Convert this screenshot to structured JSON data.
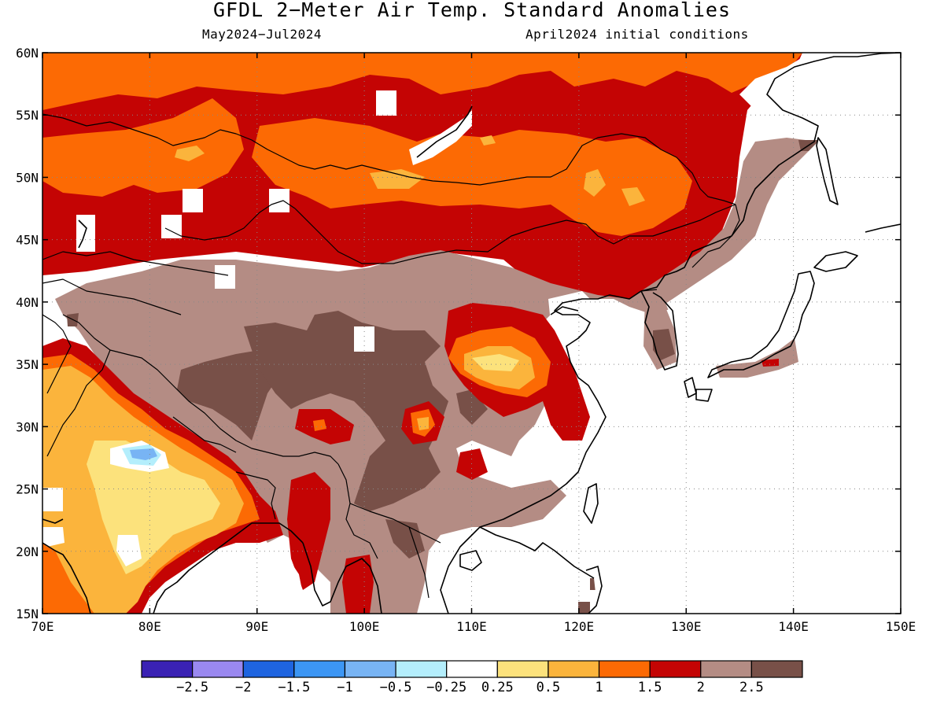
{
  "header": {
    "title": "GFDL 2−Meter Air Temp. Standard Anomalies",
    "period": "May2024−Jul2024",
    "initial_conditions": "April2024 initial conditions"
  },
  "map": {
    "lon_range": [
      70,
      150
    ],
    "lat_range": [
      15,
      60
    ],
    "lon_labels": [
      "70E",
      "80E",
      "90E",
      "100E",
      "110E",
      "120E",
      "130E",
      "140E",
      "150E"
    ],
    "lat_labels": [
      "15N",
      "20N",
      "25N",
      "30N",
      "35N",
      "40N",
      "45N",
      "50N",
      "55N",
      "60N"
    ],
    "grid": "dotted"
  },
  "colorbar": {
    "colors": [
      "#3a22b4",
      "#9a88f0",
      "#1e64e0",
      "#3c96f4",
      "#78b4f4",
      "#b4eefc",
      "#ffffff",
      "#fce27c",
      "#fbb43c",
      "#fc6a04",
      "#c40404",
      "#b48c84",
      "#785048"
    ],
    "labels": [
      "−2.5",
      "−2",
      "−1.5",
      "−1",
      "−0.5",
      "−0.25",
      "0.25",
      "0.5",
      "1",
      "1.5",
      "2",
      "2.5"
    ]
  },
  "palette": {
    "red": "#c40404",
    "orange": "#fc6a04",
    "gold": "#fbb43c",
    "yellow": "#fce27c",
    "tan": "#b48c84",
    "brown": "#785048",
    "lightblue": "#78b4f4",
    "paleblue": "#b4eefc"
  }
}
